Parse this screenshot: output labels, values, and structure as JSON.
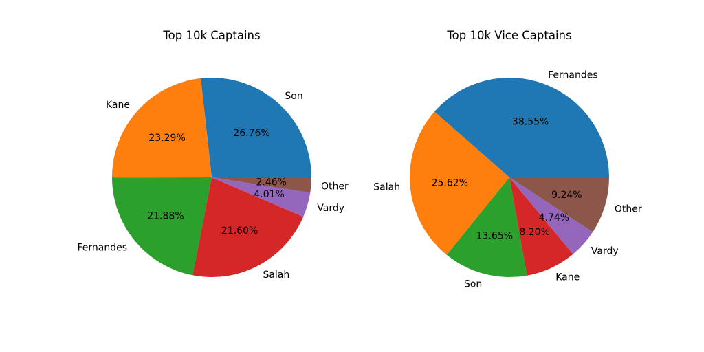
{
  "chart_data": [
    {
      "type": "pie",
      "title": "Top 10k Captains",
      "start_angle_deg": 0,
      "direction": "counterclockwise",
      "slices": [
        {
          "label": "Son",
          "value": 26.76,
          "pct_text": "26.76%",
          "color": "#1f77b4"
        },
        {
          "label": "Kane",
          "value": 23.29,
          "pct_text": "23.29%",
          "color": "#ff7f0e"
        },
        {
          "label": "Fernandes",
          "value": 21.88,
          "pct_text": "21.88%",
          "color": "#2ca02c"
        },
        {
          "label": "Salah",
          "value": 21.6,
          "pct_text": "21.60%",
          "color": "#d62728"
        },
        {
          "label": "Vardy",
          "value": 4.01,
          "pct_text": "4.01%",
          "color": "#9467bd"
        },
        {
          "label": "Other",
          "value": 2.46,
          "pct_text": "2.46%",
          "color": "#8c564b"
        }
      ]
    },
    {
      "type": "pie",
      "title": "Top 10k Vice Captains",
      "start_angle_deg": 0,
      "direction": "counterclockwise",
      "slices": [
        {
          "label": "Fernandes",
          "value": 38.55,
          "pct_text": "38.55%",
          "color": "#1f77b4"
        },
        {
          "label": "Salah",
          "value": 25.62,
          "pct_text": "25.62%",
          "color": "#ff7f0e"
        },
        {
          "label": "Son",
          "value": 13.65,
          "pct_text": "13.65%",
          "color": "#2ca02c"
        },
        {
          "label": "Kane",
          "value": 8.2,
          "pct_text": "8.20%",
          "color": "#d62728"
        },
        {
          "label": "Vardy",
          "value": 4.74,
          "pct_text": "4.74%",
          "color": "#9467bd"
        },
        {
          "label": "Other",
          "value": 9.24,
          "pct_text": "9.24%",
          "color": "#8c564b"
        }
      ]
    }
  ]
}
